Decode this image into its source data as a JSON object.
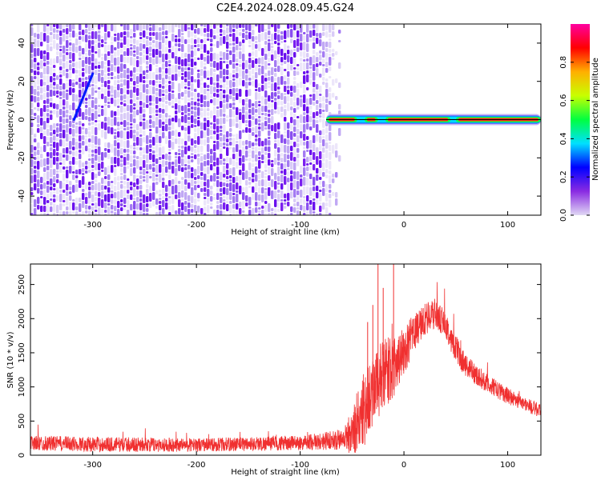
{
  "title": "C2E4.2024.028.09.45.G24",
  "chart_data": [
    {
      "type": "heatmap",
      "xlabel": "Height of straight line (km)",
      "ylabel": "Frequency (Hz)",
      "xlim": [
        -360,
        132
      ],
      "ylim": [
        -50,
        50
      ],
      "x_ticks": [
        -300,
        -200,
        -100,
        0,
        100
      ],
      "y_ticks": [
        -40,
        -20,
        0,
        20,
        40
      ],
      "noise_region_x": [
        -360,
        -72
      ],
      "echo_trace": {
        "x_range": [
          -75,
          132
        ],
        "frequency_hz": 0,
        "strong_segments": [
          [
            -75,
            -45
          ],
          [
            -38,
            -25
          ],
          [
            -18,
            45
          ],
          [
            50,
            132
          ]
        ]
      },
      "meteor_streak": {
        "x": [
          -318,
          -300
        ],
        "y": [
          0,
          24
        ]
      },
      "colorbar": {
        "label": "Normalized spectral amplitude",
        "range": [
          0,
          1
        ],
        "ticks": [
          "0.0",
          "0.2",
          "0.4",
          "0.6",
          "0.8"
        ],
        "tick_values": [
          0,
          0.2,
          0.4,
          0.6,
          0.8
        ],
        "colors": [
          "#e0d8f4",
          "#8a2be2",
          "#0000ff",
          "#00e0ff",
          "#00ff40",
          "#c8ff00",
          "#ffb000",
          "#ff0000",
          "#ff00a0"
        ]
      },
      "grid": false,
      "colors": {
        "noise": "#7a1ff0",
        "trace_line": "#000000"
      }
    },
    {
      "type": "line",
      "xlabel": "Height of straight line (km)",
      "ylabel": "SNR (10 * v/v)",
      "xlim": [
        -360,
        132
      ],
      "ylim": [
        0,
        2800
      ],
      "x_ticks": [
        -300,
        -200,
        -100,
        0,
        100
      ],
      "y_ticks": [
        0,
        500,
        1000,
        1500,
        2000,
        2500
      ],
      "envelope": {
        "x": [
          -360,
          -300,
          -200,
          -100,
          -60,
          -50,
          -40,
          -30,
          -20,
          -10,
          0,
          10,
          20,
          30,
          40,
          50,
          60,
          80,
          100,
          132
        ],
        "base": [
          180,
          160,
          150,
          180,
          230,
          330,
          650,
          950,
          1150,
          1300,
          1520,
          1800,
          1980,
          2080,
          1900,
          1560,
          1300,
          1050,
          870,
          640
        ],
        "amp": [
          110,
          110,
          100,
          110,
          150,
          350,
          600,
          500,
          550,
          450,
          350,
          280,
          250,
          220,
          200,
          200,
          170,
          140,
          120,
          100
        ]
      },
      "spikes": [
        {
          "x": -25,
          "y": 2800
        },
        {
          "x": -10,
          "y": 2800
        },
        {
          "x": -20,
          "y": 2450
        },
        {
          "x": -30,
          "y": 2200
        },
        {
          "x": -35,
          "y": 1950
        }
      ],
      "grid": false,
      "colors": {
        "line": "#f03030"
      }
    }
  ]
}
